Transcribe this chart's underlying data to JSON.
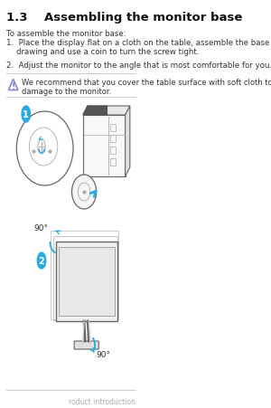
{
  "bg_color": "#ffffff",
  "title": "1.3    Assembling the monitor base",
  "intro": "To assemble the monitor base:",
  "step1": "1.  Place the display flat on a cloth on the table, assemble the base according to the\n    drawing and use a coin to turn the screw tight.",
  "step2": "2.  Adjust the monitor to the angle that is most comfortable for you.",
  "warning_text": "We recommend that you cover the table surface with soft cloth to prevent\ndamage to the monitor.",
  "footer": "roduct introduction",
  "blue_color": "#29aae1",
  "dark_color": "#333333",
  "mid_gray": "#666666",
  "light_gray": "#aaaaaa",
  "warn_line": "#cccccc",
  "warn_triangle_color": "#8888cc"
}
